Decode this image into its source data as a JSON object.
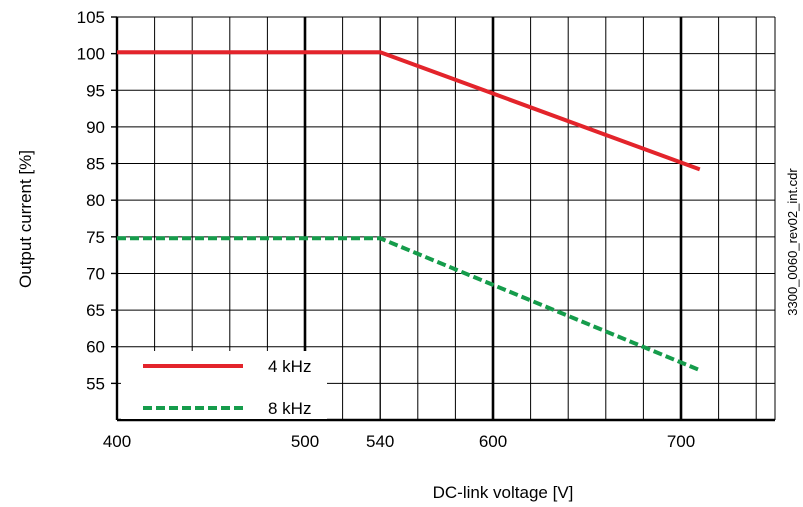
{
  "chart_data": {
    "type": "line",
    "xlabel": "DC-link voltage [V]",
    "ylabel": "Output current [%]",
    "xlim": [
      400,
      750
    ],
    "ylim": [
      50,
      105
    ],
    "x_ticks": [
      400,
      500,
      540,
      600,
      700
    ],
    "y_ticks": [
      55,
      60,
      65,
      70,
      75,
      80,
      85,
      90,
      95,
      100,
      105
    ],
    "grid": true,
    "legend_position": "bottom-left",
    "series": [
      {
        "name": "4 kHz",
        "color": "#e3242b",
        "dash": "solid",
        "x": [
          400,
          540,
          710
        ],
        "y": [
          100.2,
          100.2,
          84.2
        ]
      },
      {
        "name": "8 kHz",
        "color": "#159c4b",
        "dash": "dashed",
        "x": [
          400,
          540,
          710
        ],
        "y": [
          74.8,
          74.8,
          56.8
        ]
      }
    ],
    "annotation": "3300_0060_rev02_int.cdr"
  }
}
